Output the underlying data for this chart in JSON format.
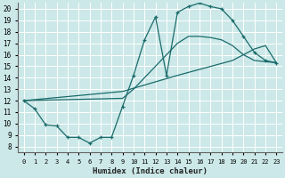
{
  "xlabel": "Humidex (Indice chaleur)",
  "background_color": "#cce8e8",
  "grid_color": "#ffffff",
  "line_color": "#1a6b6b",
  "xlim": [
    -0.5,
    23.5
  ],
  "ylim": [
    7.5,
    20.5
  ],
  "xticks": [
    0,
    1,
    2,
    3,
    4,
    5,
    6,
    7,
    8,
    9,
    10,
    11,
    12,
    13,
    14,
    15,
    16,
    17,
    18,
    19,
    20,
    21,
    22,
    23
  ],
  "yticks": [
    8,
    9,
    10,
    11,
    12,
    13,
    14,
    15,
    16,
    17,
    18,
    19,
    20
  ],
  "curve1_x": [
    0,
    1,
    2,
    3,
    4,
    5,
    6,
    7,
    8,
    9,
    10,
    11,
    12,
    13,
    14,
    15,
    16,
    17,
    18,
    19,
    20,
    21,
    22,
    23
  ],
  "curve1_y": [
    12,
    11.3,
    9.9,
    9.8,
    8.8,
    8.8,
    8.3,
    8.8,
    8.8,
    11.5,
    14.2,
    17.3,
    19.3,
    14.2,
    19.7,
    20.2,
    20.5,
    20.2,
    20.0,
    19.0,
    17.6,
    16.2,
    15.5,
    15.3
  ],
  "curve2_x": [
    0,
    9,
    10,
    11,
    12,
    13,
    14,
    15,
    16,
    17,
    18,
    19,
    20,
    21,
    22,
    23
  ],
  "curve2_y": [
    12,
    12.2,
    13.0,
    14.0,
    15.0,
    16.0,
    17.0,
    17.6,
    17.6,
    17.5,
    17.3,
    16.8,
    16.0,
    15.5,
    15.4,
    15.3
  ],
  "curve3_x": [
    0,
    9,
    14,
    19,
    20,
    21,
    22,
    23
  ],
  "curve3_y": [
    12,
    12.8,
    14.2,
    15.5,
    16.0,
    16.5,
    16.8,
    15.3
  ]
}
